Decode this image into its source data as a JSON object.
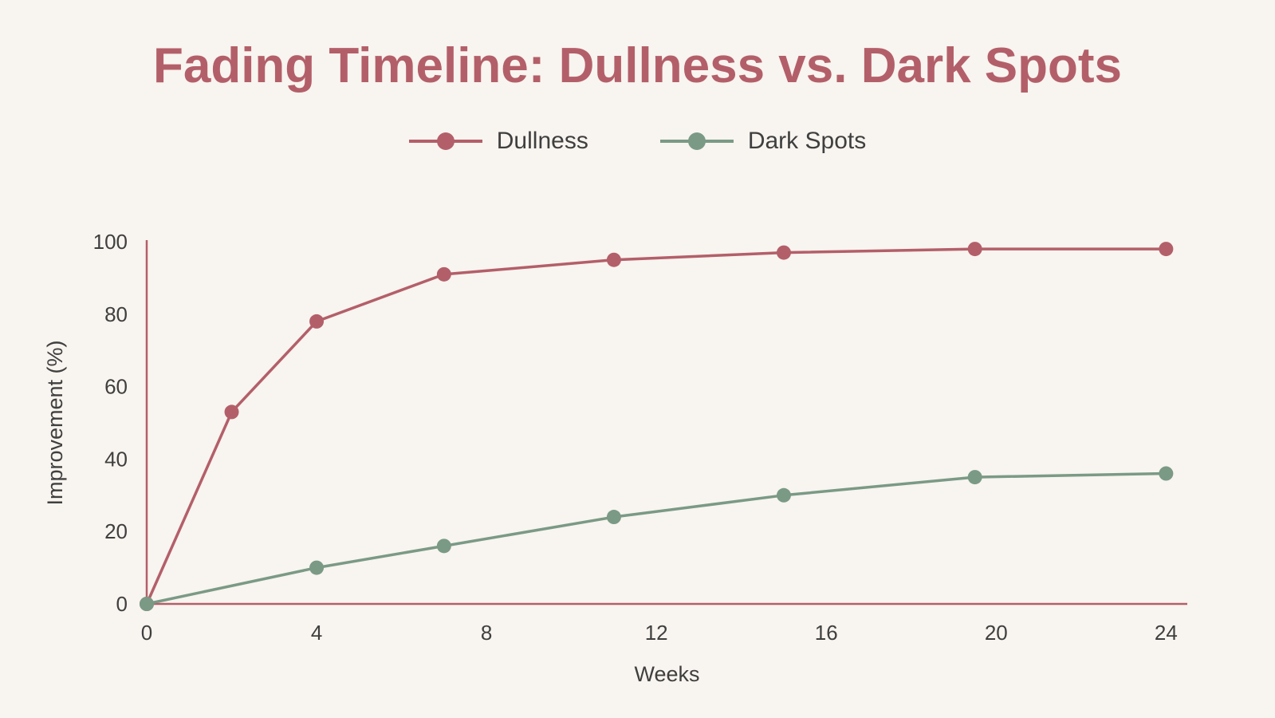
{
  "chart_data": {
    "type": "line",
    "title": "Fading Timeline: Dullness vs. Dark Spots",
    "xlabel": "Weeks",
    "ylabel": "Improvement (%)",
    "xlim": [
      0,
      24.5
    ],
    "ylim": [
      0,
      100
    ],
    "x_ticks": [
      "0",
      "4",
      "8",
      "12",
      "16",
      "20",
      "24"
    ],
    "y_ticks": [
      "0",
      "20",
      "40",
      "60",
      "80",
      "100"
    ],
    "legend_position": "top-center",
    "grid": false,
    "series": [
      {
        "name": "Dullness",
        "color": "#b35f69",
        "x": [
          0,
          2,
          4,
          7,
          11,
          15,
          19.5,
          24
        ],
        "y": [
          0,
          53,
          78,
          91,
          95,
          97,
          98,
          98
        ]
      },
      {
        "name": "Dark Spots",
        "color": "#7a9a85",
        "x": [
          0,
          4,
          7,
          11,
          15,
          19.5,
          24
        ],
        "y": [
          0,
          10,
          16,
          24,
          30,
          35,
          36
        ]
      }
    ]
  }
}
